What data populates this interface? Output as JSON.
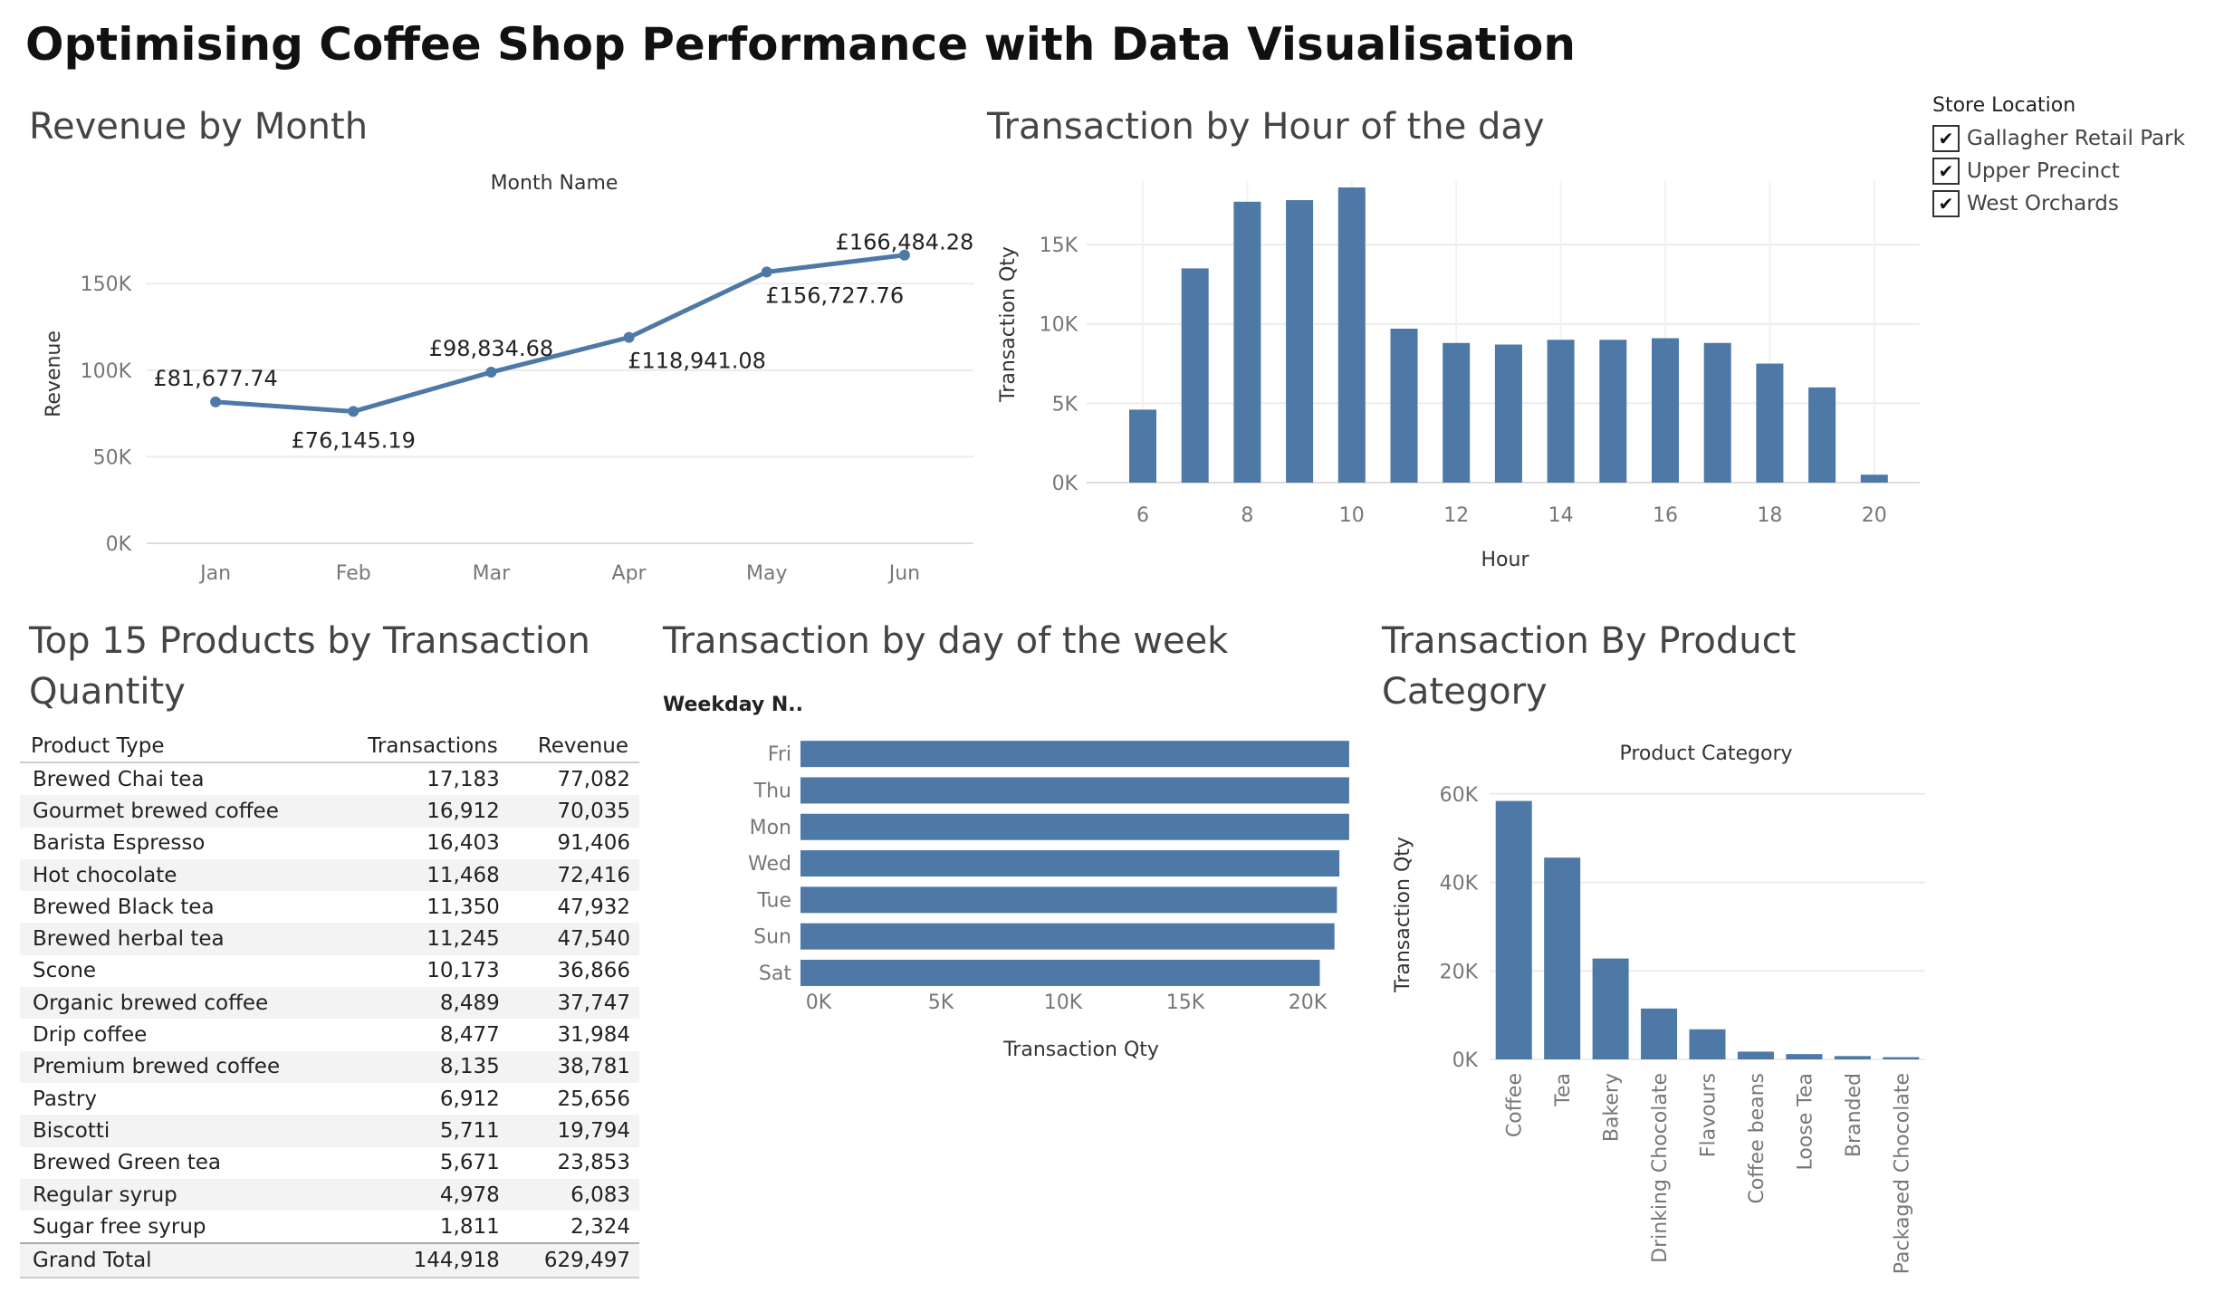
{
  "title": "Optimising Coffee Shop Performance with Data Visualisation",
  "filter": {
    "title": "Store Location",
    "items": [
      "Gallagher Retail Park",
      "Upper Precinct",
      "West Orchards"
    ],
    "check": "✔"
  },
  "colors": {
    "bar": "#4e79a7",
    "grid": "#ececec"
  },
  "chart_data": [
    {
      "panel_title": "Revenue by Month",
      "type": "line",
      "header": "Month Name",
      "categories": [
        "Jan",
        "Feb",
        "Mar",
        "Apr",
        "May",
        "Jun"
      ],
      "values": [
        81677.74,
        76145.19,
        98834.68,
        118941.08,
        156727.76,
        166484.28
      ],
      "labels": [
        "£81,677.74",
        "£76,145.19",
        "£98,834.68",
        "£118,941.08",
        "£156,727.76",
        "£166,484.28"
      ],
      "ylabel": "Revenue",
      "yticks": [
        "0K",
        "50K",
        "100K",
        "150K"
      ],
      "ylim": [
        0,
        170000
      ],
      "grid": true
    },
    {
      "panel_title": "Transaction  by Hour of the day",
      "type": "bar",
      "x": [
        6,
        7,
        8,
        9,
        10,
        11,
        12,
        13,
        14,
        15,
        16,
        17,
        18,
        19,
        20
      ],
      "values": [
        4600,
        13500,
        17700,
        17800,
        18600,
        9700,
        8800,
        8700,
        9000,
        9000,
        9100,
        8800,
        7500,
        6000,
        500
      ],
      "xticks": [
        "6",
        "8",
        "10",
        "12",
        "14",
        "16",
        "18",
        "20"
      ],
      "xlabel": "Hour",
      "ylabel": "Transaction Qty",
      "yticks": [
        "0K",
        "5K",
        "10K",
        "15K"
      ],
      "ylim": [
        0,
        19000
      ],
      "grid": true
    },
    {
      "panel_title": "Transaction by day of the week",
      "type": "bar",
      "orientation": "horizontal",
      "header": "Weekday N..",
      "categories": [
        "Fri",
        "Thu",
        "Mon",
        "Wed",
        "Tue",
        "Sun",
        "Sat"
      ],
      "values": [
        21700,
        21700,
        21700,
        21300,
        21200,
        21100,
        20500
      ],
      "xlabel": "Transaction Qty",
      "xticks": [
        "0K",
        "5K",
        "10K",
        "15K",
        "20K"
      ],
      "xlim": [
        0,
        22000
      ]
    },
    {
      "panel_title": "Transaction By Product Category",
      "type": "bar",
      "header": "Product Category",
      "categories": [
        "Coffee",
        "Tea",
        "Bakery",
        "Drinking Chocolate",
        "Flavours",
        "Coffee beans",
        "Loose Tea",
        "Branded",
        "Packaged Chocolate"
      ],
      "values": [
        58400,
        45600,
        22800,
        11500,
        6800,
        1750,
        1200,
        750,
        500
      ],
      "ylabel": "Transaction Qty",
      "yticks": [
        "0K",
        "20K",
        "40K",
        "60K"
      ],
      "ylim": [
        0,
        62000
      ],
      "grid": true
    },
    {
      "panel_title": "Top 15 Products by Transaction Quantity",
      "type": "table",
      "columns": [
        "Product Type",
        "Transactions",
        "Revenue"
      ],
      "rows": [
        [
          "Brewed Chai tea",
          "17,183",
          "77,082"
        ],
        [
          "Gourmet brewed coffee",
          "16,912",
          "70,035"
        ],
        [
          "Barista Espresso",
          "16,403",
          "91,406"
        ],
        [
          "Hot chocolate",
          "11,468",
          "72,416"
        ],
        [
          "Brewed Black tea",
          "11,350",
          "47,932"
        ],
        [
          "Brewed herbal tea",
          "11,245",
          "47,540"
        ],
        [
          "Scone",
          "10,173",
          "36,866"
        ],
        [
          "Organic brewed coffee",
          "8,489",
          "37,747"
        ],
        [
          "Drip coffee",
          "8,477",
          "31,984"
        ],
        [
          "Premium brewed coffee",
          "8,135",
          "38,781"
        ],
        [
          "Pastry",
          "6,912",
          "25,656"
        ],
        [
          "Biscotti",
          "5,711",
          "19,794"
        ],
        [
          "Brewed Green tea",
          "5,671",
          "23,853"
        ],
        [
          "Regular syrup",
          "4,978",
          "6,083"
        ],
        [
          "Sugar free syrup",
          "1,811",
          "2,324"
        ]
      ],
      "total": [
        "Grand Total",
        "144,918",
        "629,497"
      ]
    }
  ]
}
